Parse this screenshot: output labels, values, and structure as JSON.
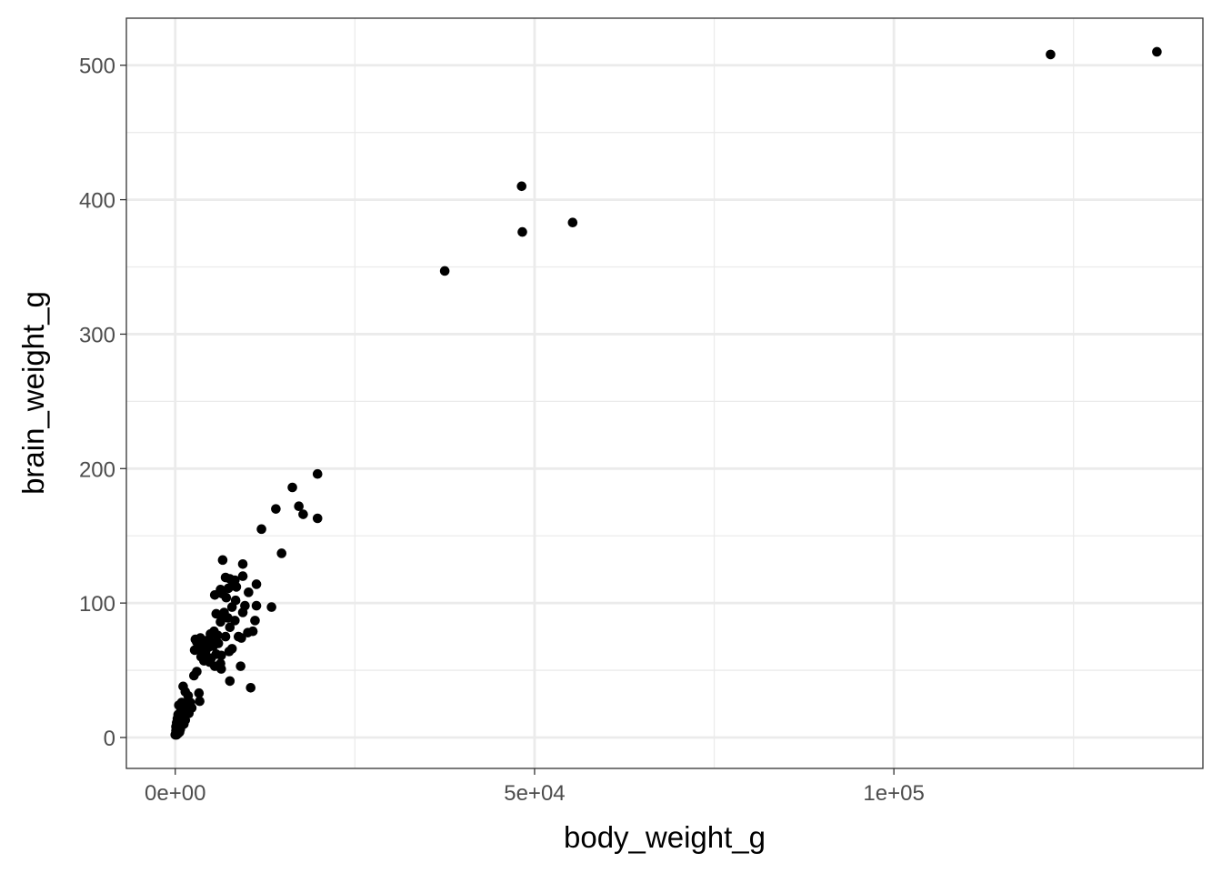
{
  "chart_data": {
    "type": "scatter",
    "xlabel": "body_weight_g",
    "ylabel": "brain_weight_g",
    "xlim": [
      -6800,
      143000
    ],
    "ylim": [
      -23,
      535
    ],
    "x_ticks": [
      0,
      50000,
      100000
    ],
    "x_tick_labels": [
      "0e+00",
      "5e+04",
      "1e+05"
    ],
    "y_ticks": [
      0,
      100,
      200,
      300,
      400,
      500
    ],
    "y_tick_labels": [
      "0",
      "100",
      "200",
      "300",
      "400",
      "500"
    ],
    "x_minor_ticks": [
      25000,
      75000,
      125000
    ],
    "y_minor_ticks": [
      50,
      150,
      250,
      350,
      450
    ],
    "grid": true,
    "legend": "none",
    "colors": {
      "point": "#000000",
      "grid": "#ebebeb",
      "border": "#333333",
      "background": "#ffffff"
    },
    "points": [
      [
        121800,
        508
      ],
      [
        136600,
        510
      ],
      [
        48200,
        410
      ],
      [
        48300,
        376
      ],
      [
        55300,
        383
      ],
      [
        37500,
        347
      ],
      [
        19800,
        196
      ],
      [
        16300,
        186
      ],
      [
        17200,
        172
      ],
      [
        17800,
        166
      ],
      [
        19800,
        163
      ],
      [
        14000,
        170
      ],
      [
        12000,
        155
      ],
      [
        14800,
        137
      ],
      [
        13400,
        97
      ],
      [
        6600,
        132
      ],
      [
        9400,
        129
      ],
      [
        7000,
        119
      ],
      [
        7600,
        118
      ],
      [
        8300,
        117
      ],
      [
        9400,
        120
      ],
      [
        11300,
        114
      ],
      [
        6300,
        110
      ],
      [
        7400,
        111
      ],
      [
        8000,
        113
      ],
      [
        8500,
        112
      ],
      [
        10200,
        108
      ],
      [
        5500,
        106
      ],
      [
        6500,
        107
      ],
      [
        7100,
        104
      ],
      [
        8400,
        102
      ],
      [
        11300,
        98
      ],
      [
        9700,
        98
      ],
      [
        7900,
        97
      ],
      [
        9400,
        93
      ],
      [
        6800,
        93
      ],
      [
        5700,
        92
      ],
      [
        6400,
        90
      ],
      [
        7300,
        89
      ],
      [
        11100,
        87
      ],
      [
        8300,
        87
      ],
      [
        6300,
        86
      ],
      [
        7600,
        82
      ],
      [
        5400,
        79
      ],
      [
        10800,
        79
      ],
      [
        10100,
        78
      ],
      [
        4900,
        77
      ],
      [
        5900,
        76
      ],
      [
        7000,
        75
      ],
      [
        8800,
        75
      ],
      [
        9200,
        74
      ],
      [
        3500,
        74
      ],
      [
        2800,
        73
      ],
      [
        4300,
        72
      ],
      [
        3000,
        71
      ],
      [
        5100,
        71
      ],
      [
        6000,
        70
      ],
      [
        3300,
        69
      ],
      [
        3900,
        67
      ],
      [
        4600,
        67
      ],
      [
        5300,
        68
      ],
      [
        7900,
        66
      ],
      [
        2700,
        65
      ],
      [
        3800,
        64
      ],
      [
        4200,
        63
      ],
      [
        5700,
        62
      ],
      [
        6400,
        61
      ],
      [
        3600,
        60
      ],
      [
        5000,
        59
      ],
      [
        4000,
        57
      ],
      [
        4800,
        56
      ],
      [
        6300,
        55
      ],
      [
        7500,
        64
      ],
      [
        5500,
        53
      ],
      [
        9100,
        53
      ],
      [
        6400,
        51
      ],
      [
        3000,
        49
      ],
      [
        2600,
        46
      ],
      [
        7600,
        42
      ],
      [
        10500,
        37
      ],
      [
        1100,
        38
      ],
      [
        1400,
        34
      ],
      [
        3300,
        33
      ],
      [
        1800,
        31
      ],
      [
        3400,
        27
      ],
      [
        2100,
        26
      ],
      [
        900,
        26
      ],
      [
        1600,
        25
      ],
      [
        500,
        24
      ],
      [
        1200,
        23
      ],
      [
        2300,
        22
      ],
      [
        1700,
        21
      ],
      [
        800,
        20
      ],
      [
        1300,
        19
      ],
      [
        1900,
        18
      ],
      [
        400,
        17
      ],
      [
        1100,
        16
      ],
      [
        700,
        15
      ],
      [
        300,
        14
      ],
      [
        1400,
        13
      ],
      [
        900,
        12
      ],
      [
        200,
        11
      ],
      [
        600,
        10
      ],
      [
        1200,
        10
      ],
      [
        400,
        9
      ],
      [
        100,
        8
      ],
      [
        800,
        8
      ],
      [
        300,
        7
      ],
      [
        500,
        6
      ],
      [
        100,
        5
      ],
      [
        200,
        4
      ],
      [
        100,
        3
      ],
      [
        0,
        2
      ],
      [
        200,
        2
      ],
      [
        400,
        3
      ],
      [
        600,
        4
      ],
      [
        700,
        6
      ]
    ]
  }
}
